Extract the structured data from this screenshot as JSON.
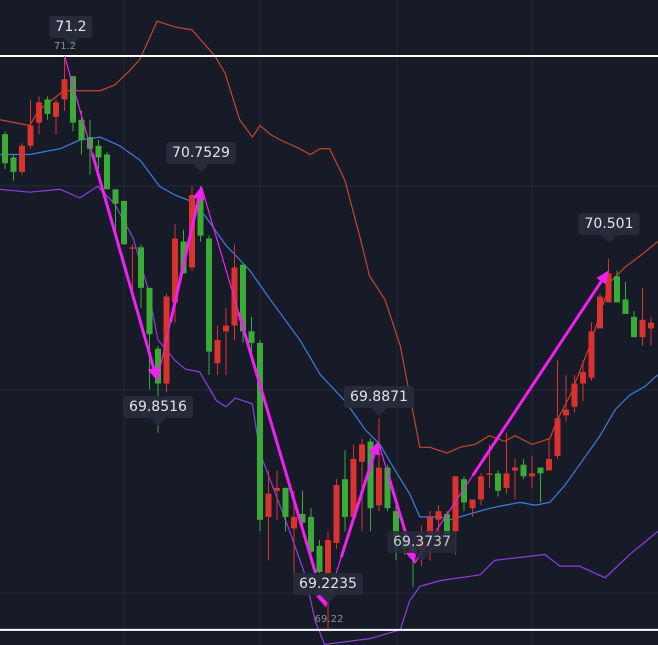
{
  "chart_data": {
    "type": "candlestick",
    "title": "",
    "ylim": [
      69.168,
      71.393
    ],
    "colors": {
      "background": "#171b28",
      "up": "#d9322f",
      "down": "#3aab36",
      "upper_band": "#c4462c",
      "middle_band": "#3b7ee0",
      "lower_band": "#8b3fe0",
      "zigzag": "#f020f0",
      "ref_line": "#ffffff",
      "grid": "#252a38"
    },
    "candles_ohlc": [
      [
        70.93,
        70.94,
        70.81,
        70.83
      ],
      [
        70.85,
        70.86,
        70.77,
        70.8
      ],
      [
        70.8,
        70.9,
        70.79,
        70.89
      ],
      [
        70.89,
        71.05,
        70.88,
        70.96
      ],
      [
        70.97,
        71.06,
        70.93,
        71.04
      ],
      [
        71.05,
        71.06,
        70.98,
        71.0
      ],
      [
        70.99,
        71.05,
        70.93,
        71.04
      ],
      [
        71.05,
        71.2,
        71.01,
        71.12
      ],
      [
        71.13,
        71.13,
        70.94,
        70.97
      ],
      [
        70.98,
        71.01,
        70.86,
        70.91
      ],
      [
        70.92,
        70.98,
        70.79,
        70.88
      ],
      [
        70.89,
        70.91,
        70.81,
        70.85
      ],
      [
        70.86,
        70.87,
        70.74,
        70.74
      ],
      [
        70.74,
        70.74,
        70.57,
        70.69
      ],
      [
        70.7,
        70.7,
        70.55,
        70.55
      ],
      [
        70.54,
        70.55,
        70.36,
        70.54
      ],
      [
        70.54,
        70.55,
        70.33,
        70.4
      ],
      [
        70.4,
        70.4,
        70.05,
        70.24
      ],
      [
        70.19,
        70.2,
        69.9,
        70.07
      ],
      [
        70.07,
        70.38,
        70.04,
        70.37
      ],
      [
        70.35,
        70.62,
        70.28,
        70.57
      ],
      [
        70.56,
        70.6,
        70.45,
        70.45
      ],
      [
        70.47,
        70.75,
        70.46,
        70.72
      ],
      [
        70.73,
        70.75,
        70.56,
        70.58
      ],
      [
        70.57,
        70.58,
        70.1,
        70.18
      ],
      [
        70.14,
        70.27,
        70.1,
        70.22
      ],
      [
        70.25,
        70.33,
        70.1,
        70.27
      ],
      [
        70.27,
        70.55,
        70.22,
        70.47
      ],
      [
        70.48,
        70.48,
        70.21,
        70.25
      ],
      [
        70.25,
        70.3,
        70.16,
        70.21
      ],
      [
        70.21,
        70.22,
        69.56,
        69.6
      ],
      [
        69.61,
        69.77,
        69.46,
        69.69
      ],
      [
        69.7,
        69.77,
        69.6,
        69.71
      ],
      [
        69.71,
        69.71,
        69.56,
        69.61
      ],
      [
        69.57,
        69.7,
        69.39,
        69.61
      ],
      [
        69.62,
        69.7,
        69.56,
        69.59
      ],
      [
        69.61,
        69.64,
        69.48,
        69.49
      ],
      [
        69.51,
        69.53,
        69.41,
        69.42
      ],
      [
        69.39,
        69.56,
        69.22,
        69.53
      ],
      [
        69.52,
        69.74,
        69.5,
        69.72
      ],
      [
        69.74,
        69.84,
        69.56,
        69.61
      ],
      [
        69.61,
        69.86,
        69.6,
        69.81
      ],
      [
        69.8,
        69.88,
        69.56,
        69.86
      ],
      [
        69.87,
        69.88,
        69.56,
        69.64
      ],
      [
        69.65,
        69.95,
        69.63,
        69.78
      ],
      [
        69.78,
        69.79,
        69.63,
        69.64
      ],
      [
        69.63,
        69.65,
        69.46,
        69.54
      ],
      [
        69.54,
        69.56,
        69.48,
        69.5
      ],
      [
        69.51,
        69.53,
        69.37,
        69.48
      ],
      [
        69.5,
        69.58,
        69.44,
        69.53
      ],
      [
        69.55,
        69.63,
        69.46,
        69.61
      ],
      [
        69.6,
        69.65,
        69.51,
        69.63
      ],
      [
        69.62,
        69.63,
        69.55,
        69.55
      ],
      [
        69.56,
        69.75,
        69.48,
        69.75
      ],
      [
        69.74,
        69.75,
        69.63,
        69.66
      ],
      [
        69.64,
        69.67,
        69.61,
        69.67
      ],
      [
        69.67,
        69.76,
        69.65,
        69.75
      ],
      [
        69.76,
        69.86,
        69.71,
        69.76
      ],
      [
        69.76,
        69.77,
        69.68,
        69.7
      ],
      [
        69.71,
        69.9,
        69.69,
        69.76
      ],
      [
        69.77,
        69.81,
        69.67,
        69.78
      ],
      [
        69.79,
        69.81,
        69.74,
        69.75
      ],
      [
        69.75,
        69.82,
        69.71,
        69.76
      ],
      [
        69.78,
        69.78,
        69.66,
        69.76
      ],
      [
        69.77,
        69.88,
        69.77,
        69.81
      ],
      [
        69.82,
        70.15,
        69.81,
        69.95
      ],
      [
        69.96,
        70.1,
        69.94,
        69.98
      ],
      [
        69.99,
        70.1,
        69.97,
        70.07
      ],
      [
        70.07,
        70.15,
        70.01,
        70.11
      ],
      [
        70.09,
        70.28,
        70.08,
        70.25
      ],
      [
        70.26,
        70.38,
        70.26,
        70.37
      ],
      [
        70.35,
        70.5,
        70.35,
        70.45
      ],
      [
        70.44,
        70.46,
        70.35,
        70.35
      ],
      [
        70.36,
        70.42,
        70.31,
        70.31
      ],
      [
        70.3,
        70.32,
        70.23,
        70.23
      ],
      [
        70.23,
        70.4,
        70.2,
        70.29
      ],
      [
        70.26,
        70.3,
        70.2,
        70.28
      ]
    ],
    "upper_band": [
      [
        -0.6,
        70.98
      ],
      [
        2.9,
        70.96
      ],
      [
        3.9,
        71.01
      ],
      [
        6.9,
        71.08
      ],
      [
        11.2,
        71.08
      ],
      [
        12.9,
        71.1
      ],
      [
        14.7,
        71.15
      ],
      [
        15.9,
        71.19
      ],
      [
        17.9,
        71.32
      ],
      [
        20,
        71.3
      ],
      [
        22,
        71.29
      ],
      [
        24.7,
        71.2
      ],
      [
        25.9,
        71.14
      ],
      [
        27.6,
        70.98
      ],
      [
        29.1,
        70.92
      ],
      [
        30,
        70.96
      ],
      [
        31.2,
        70.93
      ],
      [
        32.4,
        70.91
      ],
      [
        34.7,
        70.88
      ],
      [
        35.9,
        70.86
      ],
      [
        37.1,
        70.88
      ],
      [
        38.2,
        70.88
      ],
      [
        40,
        70.77
      ],
      [
        41.8,
        70.57
      ],
      [
        42.9,
        70.44
      ],
      [
        44.7,
        70.36
      ],
      [
        46.5,
        70.2
      ],
      [
        48.8,
        69.85
      ],
      [
        50,
        69.85
      ],
      [
        52,
        69.83
      ],
      [
        53.5,
        69.85
      ],
      [
        55.3,
        69.86
      ],
      [
        57,
        69.89
      ],
      [
        58.8,
        69.87
      ],
      [
        60,
        69.89
      ],
      [
        62,
        69.86
      ],
      [
        64.1,
        69.88
      ],
      [
        64.9,
        69.94
      ],
      [
        66.5,
        70.03
      ],
      [
        68.8,
        70.2
      ],
      [
        71.2,
        70.42
      ],
      [
        72.9,
        70.47
      ],
      [
        74.7,
        70.51
      ],
      [
        76.8,
        70.56
      ]
    ],
    "middle_band": [
      [
        -0.6,
        70.86
      ],
      [
        2.9,
        70.86
      ],
      [
        6.5,
        70.88
      ],
      [
        8.8,
        70.91
      ],
      [
        11.2,
        70.92
      ],
      [
        13.5,
        70.89
      ],
      [
        15.9,
        70.84
      ],
      [
        18.2,
        70.75
      ],
      [
        20,
        70.72
      ],
      [
        21.8,
        70.7
      ],
      [
        23.5,
        70.65
      ],
      [
        25.9,
        70.55
      ],
      [
        28.8,
        70.46
      ],
      [
        31.2,
        70.36
      ],
      [
        34.7,
        70.22
      ],
      [
        37.1,
        70.1
      ],
      [
        40,
        70.01
      ],
      [
        42.4,
        69.91
      ],
      [
        44.1,
        69.86
      ],
      [
        45.9,
        69.77
      ],
      [
        47.6,
        69.69
      ],
      [
        48.8,
        69.61
      ],
      [
        51.2,
        69.61
      ],
      [
        52.4,
        69.6
      ],
      [
        54.7,
        69.62
      ],
      [
        57.1,
        69.64
      ],
      [
        58.8,
        69.65
      ],
      [
        60.6,
        69.66
      ],
      [
        62.4,
        69.65
      ],
      [
        64.1,
        69.66
      ],
      [
        65.9,
        69.72
      ],
      [
        67.6,
        69.79
      ],
      [
        70,
        69.89
      ],
      [
        71.8,
        69.98
      ],
      [
        73.5,
        70.03
      ],
      [
        75.3,
        70.06
      ],
      [
        76.8,
        70.1
      ]
    ],
    "lower_band": [
      [
        -0.6,
        70.74
      ],
      [
        2.9,
        70.73
      ],
      [
        6.5,
        70.74
      ],
      [
        8.8,
        70.71
      ],
      [
        10.9,
        70.75
      ],
      [
        12.9,
        70.69
      ],
      [
        15.1,
        70.57
      ],
      [
        16.8,
        70.4
      ],
      [
        18,
        70.22
      ],
      [
        20,
        70.15
      ],
      [
        21.2,
        70.12
      ],
      [
        22.9,
        70.11
      ],
      [
        23.9,
        70.06
      ],
      [
        24.9,
        70.01
      ],
      [
        26,
        69.99
      ],
      [
        27.1,
        70.02
      ],
      [
        29.1,
        70.0
      ],
      [
        30,
        69.83
      ],
      [
        33.5,
        69.56
      ],
      [
        35.3,
        69.41
      ],
      [
        36.5,
        69.25
      ],
      [
        37.6,
        69.17
      ],
      [
        42.9,
        69.19
      ],
      [
        46.5,
        69.22
      ],
      [
        47.6,
        69.32
      ],
      [
        48.8,
        69.37
      ],
      [
        51.2,
        69.39
      ],
      [
        55.9,
        69.41
      ],
      [
        57.6,
        69.46
      ],
      [
        63.5,
        69.48
      ],
      [
        65.3,
        69.44
      ],
      [
        67.6,
        69.44
      ],
      [
        70.6,
        69.4
      ],
      [
        73.5,
        69.48
      ],
      [
        76.8,
        69.56
      ]
    ],
    "zigzag": [
      [
        7,
        71.2
      ],
      [
        17.9,
        70.08
      ],
      [
        23.1,
        70.75
      ],
      [
        37.7,
        69.3
      ],
      [
        43.9,
        69.87
      ],
      [
        48.2,
        69.45
      ],
      [
        71,
        70.46
      ]
    ],
    "reference_lines": [
      71.2,
      69.22
    ],
    "annotations": {
      "high_label": "71.2",
      "high_small": "71.2",
      "p1": "70.7529",
      "p2": "69.8516",
      "p3": "69.8871",
      "p4": "69.2235",
      "low_small": "69.22",
      "p5": "69.3737",
      "p6": "70.501"
    }
  }
}
